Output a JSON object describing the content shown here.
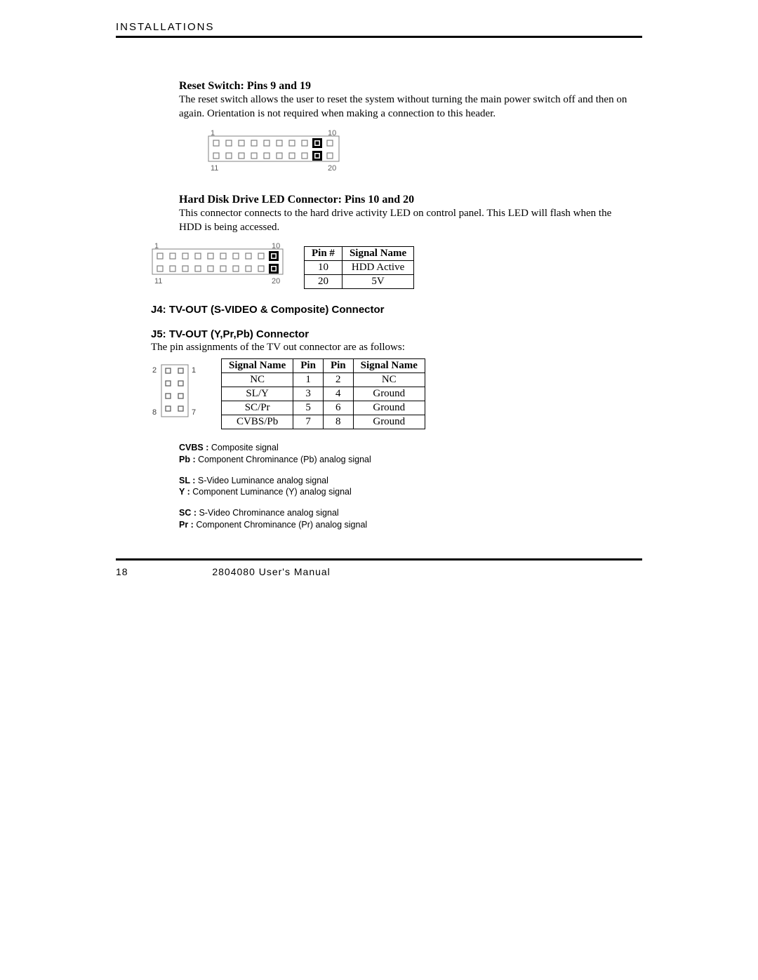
{
  "header": {
    "text": "INSTALLATIONS"
  },
  "footer": {
    "page_no": "18",
    "manual": "2804080 User's Manual"
  },
  "section1": {
    "title": "Reset Switch: Pins 9 and 19",
    "body": "The reset switch allows the user to reset the system without turning the main power switch off and then on again. Orientation is not required when making a connection to this header."
  },
  "section2": {
    "title": "Hard Disk Drive LED Connector: Pins 10 and 20",
    "body": "This connector connects to the hard drive activity LED on control panel. This LED will flash when the HDD is being accessed."
  },
  "hdd_table": {
    "headers": [
      "Pin #",
      "Signal Name"
    ],
    "rows": [
      [
        "10",
        "HDD Active"
      ],
      [
        "20",
        "5V"
      ]
    ]
  },
  "j4_title": "J4: TV-OUT (S-VIDEO & Composite) Connector",
  "j5_title": "J5: TV-OUT (Y,Pr,Pb) Connector",
  "j5_intro": "The pin assignments of the TV out connector are as follows:",
  "tv_table": {
    "headers": [
      "Signal Name",
      "Pin",
      "Pin",
      "Signal Name"
    ],
    "rows": [
      [
        "NC",
        "1",
        "2",
        "NC"
      ],
      [
        "SL/Y",
        "3",
        "4",
        "Ground"
      ],
      [
        "SC/Pr",
        "5",
        "6",
        "Ground"
      ],
      [
        "CVBS/Pb",
        "7",
        "8",
        "Ground"
      ]
    ]
  },
  "defs": {
    "g1": [
      {
        "k": "CVBS :",
        "v": " Composite signal"
      },
      {
        "k": "Pb :",
        "v": " Component Chrominance (Pb) analog signal"
      }
    ],
    "g2": [
      {
        "k": "SL :",
        "v": " S-Video Luminance analog signal"
      },
      {
        "k": "Y  :",
        "v": " Component Luminance (Y) analog signal"
      }
    ],
    "g3": [
      {
        "k": "SC :",
        "v": " S-Video Chrominance analog signal"
      },
      {
        "k": "Pr :",
        "v": " Component Chrominance (Pr) analog signal"
      }
    ]
  },
  "diagram_20pin": {
    "cols": 10,
    "rows": 2,
    "labels": {
      "tl": "1",
      "tr": "10",
      "bl": "11",
      "br": "20"
    },
    "empty_stroke": "#808080",
    "filled_fill": "#000000",
    "variant_reset_filled": [
      9,
      19
    ],
    "variant_hdd_filled": [
      10,
      20
    ],
    "cell": 18,
    "size": 8
  },
  "diagram_8pin": {
    "cols": 2,
    "rows": 4,
    "labels": {
      "tl": "2",
      "tr": "1",
      "bl": "8",
      "br": "7"
    },
    "empty_stroke": "#606060",
    "cell": 18,
    "size": 7
  }
}
